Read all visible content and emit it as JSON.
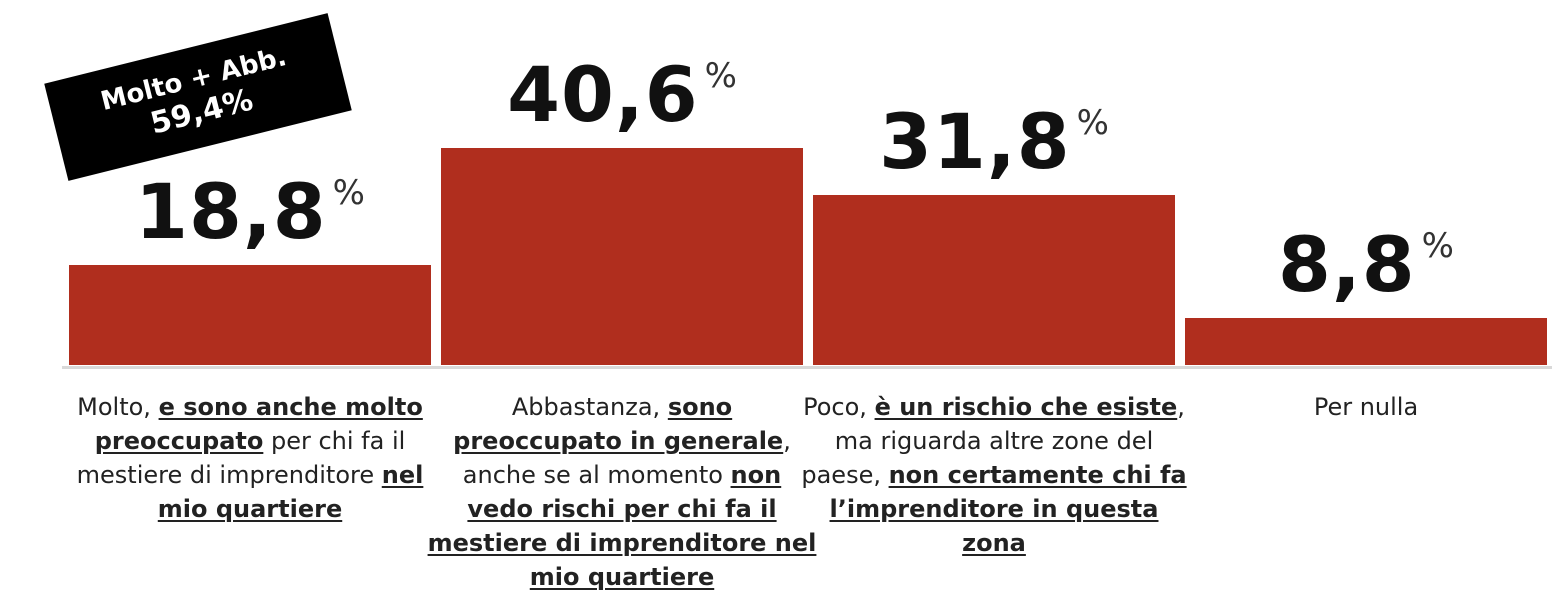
{
  "chart_data": {
    "type": "bar",
    "categories": [
      "Molto",
      "Abbastanza",
      "Poco",
      "Per nulla"
    ],
    "values": [
      18.8,
      40.6,
      31.8,
      8.8
    ],
    "value_labels": [
      "18,8",
      "40,6",
      "31,8",
      "8,8"
    ],
    "percent_sign": "%",
    "ylim": [
      0,
      45
    ],
    "bar_color": "#b02e1e",
    "category_labels": [
      [
        {
          "text": "Molto, ",
          "bold": false
        },
        {
          "text": "e sono anche molto preoccupato",
          "bold": true
        },
        {
          "text": " per chi fa il mestiere di imprenditore ",
          "bold": false
        },
        {
          "text": "nel mio quartiere",
          "bold": true
        }
      ],
      [
        {
          "text": "Abbastanza, ",
          "bold": false
        },
        {
          "text": "sono preoccupato in generale",
          "bold": true
        },
        {
          "text": ", anche se al momento ",
          "bold": false
        },
        {
          "text": "non vedo rischi per chi fa il mestiere di imprenditore nel mio quartiere",
          "bold": true
        }
      ],
      [
        {
          "text": "Poco, ",
          "bold": false
        },
        {
          "text": "è un rischio che esiste",
          "bold": true
        },
        {
          "text": ", ma riguarda altre zone del paese, ",
          "bold": false
        },
        {
          "text": "non certamente chi fa l’imprenditore in questa zona",
          "bold": true
        }
      ],
      [
        {
          "text": "Per nulla",
          "bold": false
        }
      ]
    ],
    "annotation": {
      "line1": "Molto + Abb.",
      "line2": "59,4%"
    }
  }
}
